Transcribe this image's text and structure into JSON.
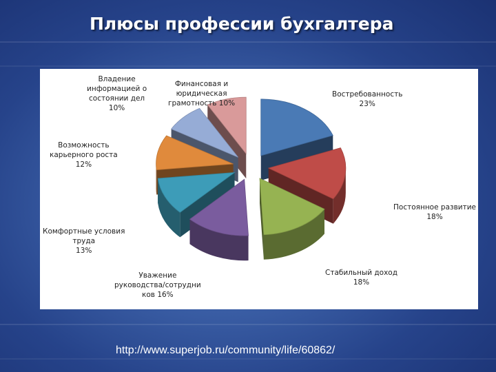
{
  "title": "Плюсы профессии бухгалтера",
  "source_url": "http://www.superjob.ru/community/life/60862/",
  "chart_data": {
    "type": "pie",
    "exploded": true,
    "three_d": true,
    "slices": [
      {
        "name": "Востребованность",
        "value": 23,
        "color": "#4a7ab5",
        "label": [
          "Востребованность",
          "23%"
        ]
      },
      {
        "name": "Постоянное развитие",
        "value": 18,
        "color": "#bf4c48",
        "label": [
          "Постоянное развитие",
          "18%"
        ]
      },
      {
        "name": "Стабильный доход",
        "value": 18,
        "color": "#96b352",
        "label": [
          "Стабильный доход",
          "18%"
        ]
      },
      {
        "name": "Уважение руководства/сотрудников",
        "value": 16,
        "color": "#7a5c9e",
        "label": [
          "Уважение",
          "руководства/сотрудни",
          "ков 16%"
        ]
      },
      {
        "name": "Комфортные условия труда",
        "value": 13,
        "color": "#3d9cb8",
        "label": [
          "Комфортные условия",
          "труда",
          "13%"
        ]
      },
      {
        "name": "Возможность карьерного роста",
        "value": 12,
        "color": "#e08a3c",
        "label": [
          "Возможность",
          "карьерного роста",
          "12%"
        ]
      },
      {
        "name": "Владение информацией о состоянии дел",
        "value": 10,
        "color": "#96acd6",
        "label": [
          "Владение",
          "информацией о",
          "состоянии дел",
          "10%"
        ]
      },
      {
        "name": "Финансовая и юридическая грамотность",
        "value": 10,
        "color": "#d99a9a",
        "label": [
          "Финансовая и",
          "юридическая",
          "грамотность 10%"
        ]
      }
    ]
  }
}
